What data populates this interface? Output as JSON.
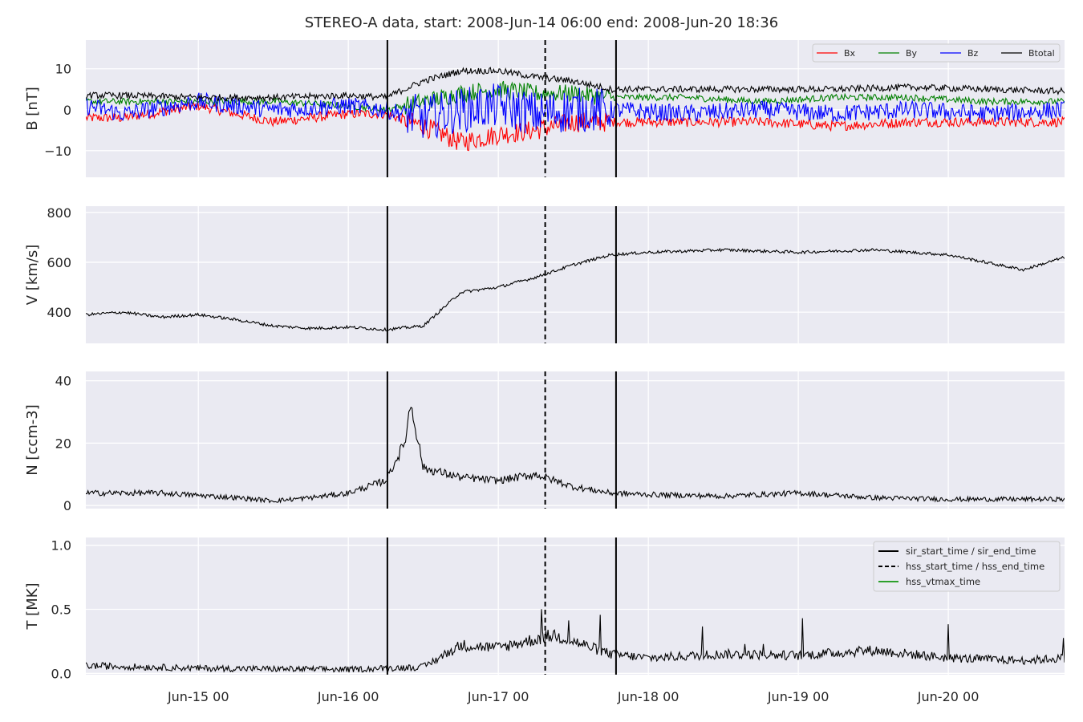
{
  "figure": {
    "title": "STEREO-A data, start: 2008-Jun-14 06:00  end: 2008-Jun-20 18:36",
    "colors": {
      "panel_bg": "#EAEAF2",
      "grid": "#FFFFFF",
      "text": "#262626",
      "Bx": "#FF0000",
      "By": "#008000",
      "Bz": "#0000FF",
      "Btotal": "#000000",
      "hss_vtmax": "#2CA02C"
    },
    "x_tick_labels": [
      "Jun-15 00",
      "Jun-16 00",
      "Jun-17 00",
      "Jun-18 00",
      "Jun-19 00",
      "Jun-20 00"
    ]
  },
  "chart_data": [
    {
      "type": "line",
      "panel": "B",
      "ylabel": "B [nT]",
      "x_range": [
        "2008-06-14 06:00",
        "2008-06-20 18:36"
      ],
      "ylim": [
        -16.5,
        17
      ],
      "yticks": [
        -10,
        0,
        10
      ],
      "ytick_labels": [
        "−10",
        "0",
        "10"
      ],
      "grid": true,
      "legend_position": "top-right",
      "legend_columns": 4,
      "series": [
        {
          "name": "Bx",
          "x": [
            "2008-06-14 06:00",
            "2008-06-14 12:00",
            "2008-06-15 00:00",
            "2008-06-15 12:00",
            "2008-06-16 00:00",
            "2008-06-16 06:00",
            "2008-06-16 12:00",
            "2008-06-16 18:00",
            "2008-06-17 00:00",
            "2008-06-17 06:00",
            "2008-06-17 12:00",
            "2008-06-17 18:00",
            "2008-06-18 06:00",
            "2008-06-18 18:00",
            "2008-06-19 06:00",
            "2008-06-19 18:00",
            "2008-06-20 06:00",
            "2008-06-20 18:36"
          ],
          "values": [
            -2,
            -2,
            1,
            -3,
            -1,
            -1,
            -4,
            -8,
            -6,
            -5,
            -3,
            -3,
            -3,
            -3,
            -4,
            -3,
            -3,
            -3
          ]
        },
        {
          "name": "By",
          "x": [
            "2008-06-14 06:00",
            "2008-06-14 12:00",
            "2008-06-15 00:00",
            "2008-06-15 12:00",
            "2008-06-16 00:00",
            "2008-06-16 06:00",
            "2008-06-16 12:00",
            "2008-06-16 18:00",
            "2008-06-17 00:00",
            "2008-06-17 06:00",
            "2008-06-17 12:00",
            "2008-06-17 18:00",
            "2008-06-18 06:00",
            "2008-06-18 18:00",
            "2008-06-19 06:00",
            "2008-06-19 18:00",
            "2008-06-20 06:00",
            "2008-06-20 18:36"
          ],
          "values": [
            2,
            2,
            2,
            2,
            1,
            0,
            2,
            4,
            5,
            4,
            4,
            3,
            3,
            2,
            3,
            3,
            2,
            2
          ]
        },
        {
          "name": "Bz",
          "x": [
            "2008-06-14 06:00",
            "2008-06-14 12:00",
            "2008-06-15 00:00",
            "2008-06-15 12:00",
            "2008-06-16 00:00",
            "2008-06-16 06:00",
            "2008-06-16 12:00",
            "2008-06-16 18:00",
            "2008-06-17 00:00",
            "2008-06-17 06:00",
            "2008-06-17 12:00",
            "2008-06-17 18:00",
            "2008-06-18 06:00",
            "2008-06-18 18:00",
            "2008-06-19 06:00",
            "2008-06-19 18:00",
            "2008-06-20 06:00",
            "2008-06-20 18:36"
          ],
          "values": [
            1,
            -1,
            2,
            0,
            1,
            0,
            -2,
            0,
            1,
            -1,
            0,
            0,
            -1,
            0,
            -1,
            0,
            -1,
            0
          ]
        },
        {
          "name": "Btotal",
          "x": [
            "2008-06-14 06:00",
            "2008-06-14 12:00",
            "2008-06-15 00:00",
            "2008-06-15 12:00",
            "2008-06-16 00:00",
            "2008-06-16 06:00",
            "2008-06-16 12:00",
            "2008-06-16 18:00",
            "2008-06-17 00:00",
            "2008-06-17 06:00",
            "2008-06-17 12:00",
            "2008-06-17 18:00",
            "2008-06-18 06:00",
            "2008-06-18 18:00",
            "2008-06-19 06:00",
            "2008-06-19 18:00",
            "2008-06-20 06:00",
            "2008-06-20 18:36"
          ],
          "values": [
            3.5,
            3.5,
            3,
            3,
            3.5,
            3,
            7,
            9.5,
            9.5,
            8,
            7,
            5,
            5,
            5,
            5,
            5.5,
            5,
            4.5
          ]
        }
      ],
      "event_lines": [
        {
          "name": "sir_start_time / sir_end_time",
          "style": "solid",
          "x": [
            "2008-06-16 06:15",
            "2008-06-17 18:50"
          ]
        },
        {
          "name": "hss_start_time / hss_end_time",
          "style": "dashed",
          "x": [
            "2008-06-17 07:30"
          ]
        }
      ]
    },
    {
      "type": "line",
      "panel": "V",
      "ylabel": "V [km/s]",
      "x_range": [
        "2008-06-14 06:00",
        "2008-06-20 18:36"
      ],
      "ylim": [
        275,
        825
      ],
      "yticks": [
        400,
        600,
        800
      ],
      "ytick_labels": [
        "400",
        "600",
        "800"
      ],
      "grid": true,
      "series": [
        {
          "x": [
            "2008-06-14 06:00",
            "2008-06-14 12:00",
            "2008-06-14 18:00",
            "2008-06-15 00:00",
            "2008-06-15 06:00",
            "2008-06-15 12:00",
            "2008-06-15 18:00",
            "2008-06-16 00:00",
            "2008-06-16 06:00",
            "2008-06-16 12:00",
            "2008-06-16 18:00",
            "2008-06-17 00:00",
            "2008-06-17 06:00",
            "2008-06-17 12:00",
            "2008-06-17 18:00",
            "2008-06-18 00:00",
            "2008-06-18 12:00",
            "2008-06-19 00:00",
            "2008-06-19 12:00",
            "2008-06-20 00:00",
            "2008-06-20 12:00",
            "2008-06-20 18:36"
          ],
          "values": [
            390,
            400,
            380,
            390,
            370,
            345,
            335,
            340,
            330,
            345,
            480,
            500,
            540,
            590,
            630,
            640,
            650,
            640,
            650,
            630,
            570,
            620
          ]
        }
      ],
      "event_lines": [
        {
          "name": "sir_start_time / sir_end_time",
          "style": "solid",
          "x": [
            "2008-06-16 06:15",
            "2008-06-17 18:50"
          ]
        },
        {
          "name": "hss_start_time / hss_end_time",
          "style": "dashed",
          "x": [
            "2008-06-17 07:30"
          ]
        }
      ]
    },
    {
      "type": "line",
      "panel": "N",
      "ylabel": "N [ccm-3]",
      "x_range": [
        "2008-06-14 06:00",
        "2008-06-20 18:36"
      ],
      "ylim": [
        -1,
        43
      ],
      "yticks": [
        0,
        20,
        40
      ],
      "ytick_labels": [
        "0",
        "20",
        "40"
      ],
      "grid": true,
      "series": [
        {
          "x": [
            "2008-06-14 06:00",
            "2008-06-14 18:00",
            "2008-06-15 06:00",
            "2008-06-15 12:00",
            "2008-06-15 18:00",
            "2008-06-16 00:00",
            "2008-06-16 06:00",
            "2008-06-16 09:00",
            "2008-06-16 10:00",
            "2008-06-16 12:00",
            "2008-06-16 18:00",
            "2008-06-17 00:00",
            "2008-06-17 06:00",
            "2008-06-17 12:00",
            "2008-06-17 18:00",
            "2008-06-18 00:00",
            "2008-06-18 12:00",
            "2008-06-19 00:00",
            "2008-06-19 12:00",
            "2008-06-20 00:00",
            "2008-06-20 12:00",
            "2008-06-20 18:36"
          ],
          "values": [
            4,
            4,
            2.5,
            1.5,
            2.5,
            4,
            8,
            20,
            33,
            12,
            9,
            8,
            10,
            6,
            4,
            3.5,
            3,
            4,
            2.5,
            2,
            2,
            2
          ]
        }
      ],
      "event_lines": [
        {
          "name": "sir_start_time / sir_end_time",
          "style": "solid",
          "x": [
            "2008-06-16 06:15",
            "2008-06-17 18:50"
          ]
        },
        {
          "name": "hss_start_time / hss_end_time",
          "style": "dashed",
          "x": [
            "2008-06-17 07:30"
          ]
        }
      ]
    },
    {
      "type": "line",
      "panel": "T",
      "ylabel": "T [MK]",
      "x_range": [
        "2008-06-14 06:00",
        "2008-06-20 18:36"
      ],
      "ylim": [
        -0.01,
        1.06
      ],
      "yticks": [
        0.0,
        0.5,
        1.0
      ],
      "ytick_labels": [
        "0.0",
        "0.5",
        "1.0"
      ],
      "grid": true,
      "legend_position": "top-right",
      "legend": [
        "sir_start_time / sir_end_time",
        "hss_start_time / hss_end_time",
        "hss_vtmax_time"
      ],
      "series": [
        {
          "x": [
            "2008-06-14 06:00",
            "2008-06-15 00:00",
            "2008-06-16 00:00",
            "2008-06-16 12:00",
            "2008-06-16 18:00",
            "2008-06-17 00:00",
            "2008-06-17 09:00",
            "2008-06-17 12:00",
            "2008-06-17 18:00",
            "2008-06-18 00:00",
            "2008-06-18 12:00",
            "2008-06-19 00:00",
            "2008-06-19 12:00",
            "2008-06-20 00:00",
            "2008-06-20 12:00",
            "2008-06-20 18:36"
          ],
          "values": [
            0.06,
            0.04,
            0.03,
            0.05,
            0.22,
            0.2,
            0.3,
            0.25,
            0.15,
            0.12,
            0.15,
            0.14,
            0.18,
            0.12,
            0.1,
            0.12
          ]
        }
      ],
      "event_lines": [
        {
          "name": "sir_start_time / sir_end_time",
          "style": "solid",
          "x": [
            "2008-06-16 06:15",
            "2008-06-17 18:50"
          ]
        },
        {
          "name": "hss_start_time / hss_end_time",
          "style": "dashed",
          "x": [
            "2008-06-17 07:30"
          ]
        }
      ]
    }
  ]
}
